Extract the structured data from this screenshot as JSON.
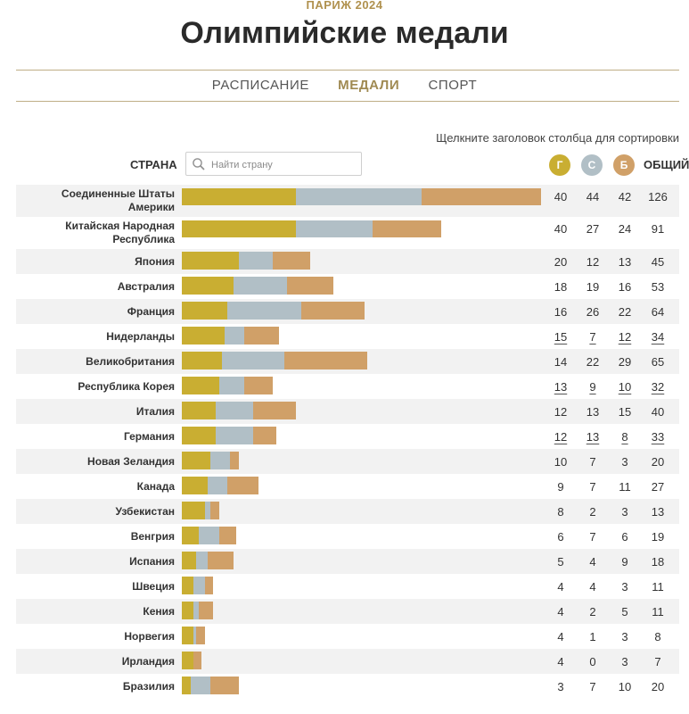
{
  "header": {
    "event": "ПАРИЖ 2024",
    "title": "Олимпийские медали"
  },
  "tabs": [
    {
      "label": "РАСПИСАНИЕ",
      "active": false
    },
    {
      "label": "МЕДАЛИ",
      "active": true
    },
    {
      "label": "СПОРТ",
      "active": false
    }
  ],
  "sort_hint": "Щелкните заголовок столбца для сортировки",
  "table": {
    "country_header": "СТРАНА",
    "search_placeholder": "Найти страну",
    "gold_header": "Г",
    "silver_header": "С",
    "bronze_header": "Б",
    "total_header": "ОБЩИЙ",
    "colors": {
      "gold": "#c9ae32",
      "silver": "#b1bfc6",
      "bronze": "#d0a068",
      "accent": "#a08a52"
    },
    "rows": [
      {
        "country": "Соединенные Штаты Америки",
        "gold": 40,
        "silver": 44,
        "bronze": 42,
        "total": 126
      },
      {
        "country": "Китайская Народная Республика",
        "gold": 40,
        "silver": 27,
        "bronze": 24,
        "total": 91
      },
      {
        "country": "Япония",
        "gold": 20,
        "silver": 12,
        "bronze": 13,
        "total": 45
      },
      {
        "country": "Австралия",
        "gold": 18,
        "silver": 19,
        "bronze": 16,
        "total": 53
      },
      {
        "country": "Франция",
        "gold": 16,
        "silver": 26,
        "bronze": 22,
        "total": 64
      },
      {
        "country": "Нидерланды",
        "gold": 15,
        "silver": 7,
        "bronze": 12,
        "total": 34,
        "linked": true
      },
      {
        "country": "Великобритания",
        "gold": 14,
        "silver": 22,
        "bronze": 29,
        "total": 65
      },
      {
        "country": "Республика Корея",
        "gold": 13,
        "silver": 9,
        "bronze": 10,
        "total": 32,
        "linked": true
      },
      {
        "country": "Италия",
        "gold": 12,
        "silver": 13,
        "bronze": 15,
        "total": 40
      },
      {
        "country": "Германия",
        "gold": 12,
        "silver": 13,
        "bronze": 8,
        "total": 33,
        "linked": true
      },
      {
        "country": "Новая Зеландия",
        "gold": 10,
        "silver": 7,
        "bronze": 3,
        "total": 20
      },
      {
        "country": "Канада",
        "gold": 9,
        "silver": 7,
        "bronze": 11,
        "total": 27
      },
      {
        "country": "Узбекистан",
        "gold": 8,
        "silver": 2,
        "bronze": 3,
        "total": 13
      },
      {
        "country": "Венгрия",
        "gold": 6,
        "silver": 7,
        "bronze": 6,
        "total": 19
      },
      {
        "country": "Испания",
        "gold": 5,
        "silver": 4,
        "bronze": 9,
        "total": 18
      },
      {
        "country": "Швеция",
        "gold": 4,
        "silver": 4,
        "bronze": 3,
        "total": 11
      },
      {
        "country": "Кения",
        "gold": 4,
        "silver": 2,
        "bronze": 5,
        "total": 11
      },
      {
        "country": "Норвегия",
        "gold": 4,
        "silver": 1,
        "bronze": 3,
        "total": 8
      },
      {
        "country": "Ирландия",
        "gold": 4,
        "silver": 0,
        "bronze": 3,
        "total": 7
      },
      {
        "country": "Бразилия",
        "gold": 3,
        "silver": 7,
        "bronze": 10,
        "total": 20
      }
    ]
  }
}
